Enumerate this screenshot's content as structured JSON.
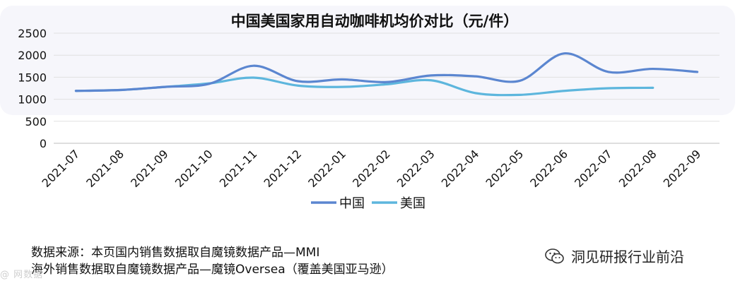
{
  "chart_data": {
    "type": "line",
    "title": "中国美国家用自动咖啡机均价对比（元/件）",
    "categories": [
      "2021-07",
      "2021-08",
      "2021-09",
      "2021-10",
      "2021-11",
      "2021-12",
      "2022-01",
      "2022-02",
      "2022-03",
      "2022-04",
      "2022-05",
      "2022-06",
      "2022-07",
      "2022-08",
      "2022-09"
    ],
    "y_ticks": [
      0,
      500,
      1000,
      1500,
      2000,
      2500
    ],
    "ylim": [
      0,
      2500
    ],
    "series": [
      {
        "name": "中国",
        "color": "#5b86d0",
        "values": [
          1190,
          1210,
          1280,
          1350,
          1760,
          1410,
          1450,
          1390,
          1540,
          1520,
          1420,
          2040,
          1620,
          1690,
          1620
        ]
      },
      {
        "name": "美国",
        "color": "#5db6dd",
        "values": [
          1190,
          1210,
          1280,
          1360,
          1490,
          1310,
          1280,
          1340,
          1430,
          1140,
          1100,
          1190,
          1250,
          1260,
          null
        ]
      }
    ],
    "legend": "bottom",
    "grid": true
  },
  "footer": {
    "source_line1": "数据来源：本页国内销售数据取自魔镜数据产品—MMI",
    "source_line2": "海外销售数据取自魔镜数据产品—魔镜Oversea（覆盖美国亚马逊）",
    "brand": "洞见研报行业前沿",
    "watermark": "@ 网数据"
  }
}
